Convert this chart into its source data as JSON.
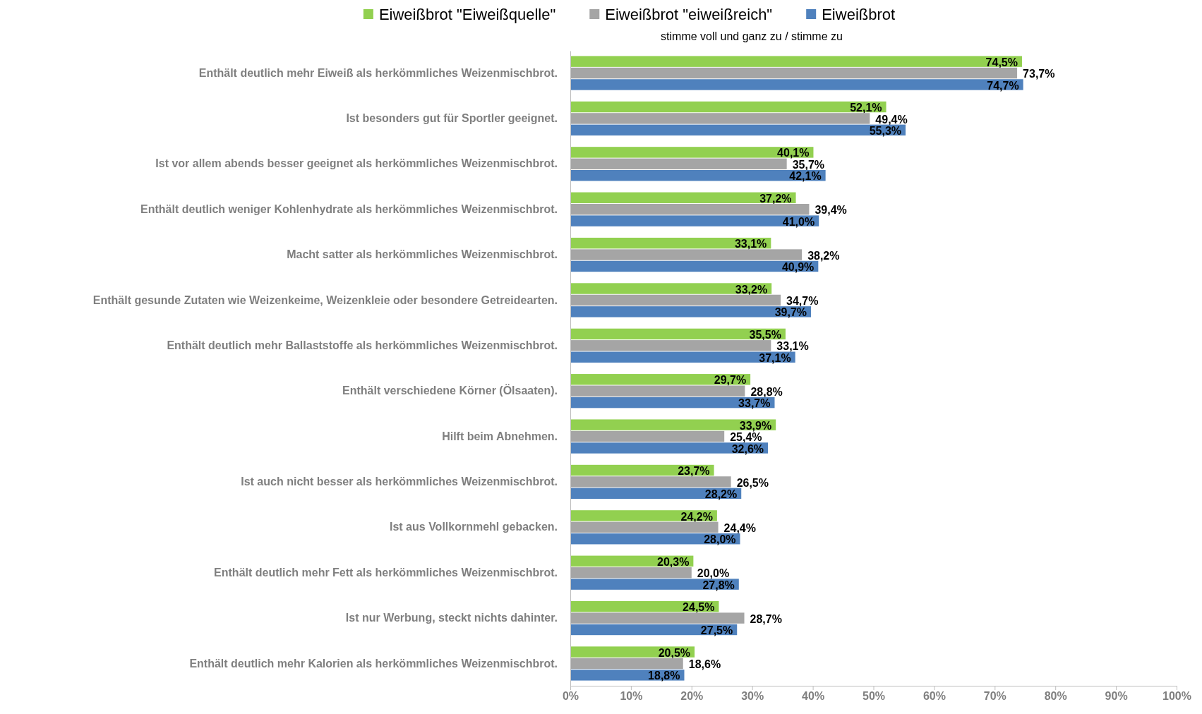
{
  "chart_data": {
    "type": "bar",
    "orientation": "horizontal",
    "subtitle": "stimme voll und ganz zu / stimme zu",
    "legend": "top",
    "grid": false,
    "categories": [
      "Enthält deutlich mehr Eiweiß als herkömmliches Weizenmischbrot.",
      "Ist besonders gut für Sportler geeignet.",
      "Ist vor allem abends besser geeignet als herkömmliches Weizenmischbrot.",
      "Enthält deutlich weniger Kohlenhydrate als herkömmliches Weizenmischbrot.",
      "Macht satter als herkömmliches Weizenmischbrot.",
      "Enthält gesunde Zutaten wie Weizenkeime, Weizenkleie oder besondere Getreidearten.",
      "Enthält deutlich mehr Ballaststoffe als herkömmliches Weizenmischbrot.",
      "Enthält verschiedene Körner (Ölsaaten).",
      "Hilft beim Abnehmen.",
      "Ist auch nicht besser als herkömmliches Weizenmischbrot.",
      "Ist aus Vollkornmehl gebacken.",
      "Enthält deutlich mehr Fett als herkömmliches Weizenmischbrot.",
      "Ist nur Werbung, steckt nichts dahinter.",
      "Enthält deutlich mehr Kalorien als herkömmliches Weizenmischbrot."
    ],
    "series": [
      {
        "name": "Eiweißbrot \"Eiweißquelle\"",
        "color": "#92d050",
        "values": [
          74.5,
          52.1,
          40.1,
          37.2,
          33.1,
          33.2,
          35.5,
          29.7,
          33.9,
          23.7,
          24.2,
          20.3,
          24.5,
          20.5
        ],
        "value_labels": [
          "74,5%",
          "52,1%",
          "40,1%",
          "37,2%",
          "33,1%",
          "33,2%",
          "35,5%",
          "29,7%",
          "33,9%",
          "23,7%",
          "24,2%",
          "20,3%",
          "24,5%",
          "20,5%"
        ]
      },
      {
        "name": "Eiweißbrot \"eiweißreich\"",
        "color": "#a5a5a5",
        "values": [
          73.7,
          49.4,
          35.7,
          39.4,
          38.2,
          34.7,
          33.1,
          28.8,
          25.4,
          26.5,
          24.4,
          20.0,
          28.7,
          18.6
        ],
        "value_labels": [
          "73,7%",
          "49,4%",
          "35,7%",
          "39,4%",
          "38,2%",
          "34,7%",
          "33,1%",
          "28,8%",
          "25,4%",
          "26,5%",
          "24,4%",
          "20,0%",
          "28,7%",
          "18,6%"
        ]
      },
      {
        "name": "Eiweißbrot",
        "color": "#4f81bd",
        "values": [
          74.7,
          55.3,
          42.1,
          41.0,
          40.9,
          39.7,
          37.1,
          33.7,
          32.6,
          28.2,
          28.0,
          27.8,
          27.5,
          18.8
        ],
        "value_labels": [
          "74,7%",
          "55,3%",
          "42,1%",
          "41,0%",
          "40,9%",
          "39,7%",
          "37,1%",
          "33,7%",
          "32,6%",
          "28,2%",
          "28,0%",
          "27,8%",
          "27,5%",
          "18,8%"
        ]
      }
    ],
    "xlim": [
      0,
      100
    ],
    "xticks": [
      {
        "value": 0,
        "label": "0%"
      },
      {
        "value": 10,
        "label": "10%"
      },
      {
        "value": 20,
        "label": "20%"
      },
      {
        "value": 30,
        "label": "30%"
      },
      {
        "value": 40,
        "label": "40%"
      },
      {
        "value": 50,
        "label": "50%"
      },
      {
        "value": 60,
        "label": "60%"
      },
      {
        "value": 70,
        "label": "70%"
      },
      {
        "value": 80,
        "label": "80%"
      },
      {
        "value": 90,
        "label": "90%"
      },
      {
        "value": 100,
        "label": "100%"
      }
    ]
  }
}
